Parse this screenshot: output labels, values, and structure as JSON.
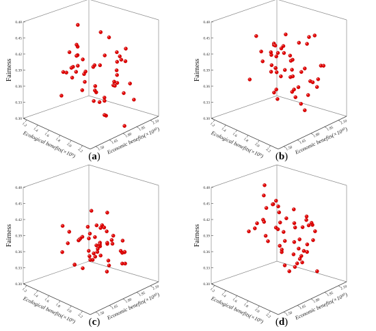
{
  "figure": {
    "panels": [
      {
        "caption_letter": "a",
        "caption_left": "(",
        "caption_right": ")"
      },
      {
        "caption_letter": "b",
        "caption_left": "(",
        "caption_right": ")"
      },
      {
        "caption_letter": "c",
        "caption_left": "(",
        "caption_right": ")"
      },
      {
        "caption_letter": "d",
        "caption_left": "(",
        "caption_right": ")"
      }
    ]
  },
  "chart_data": [
    {
      "type": "scatter",
      "title": "",
      "zlabel": "Fairness",
      "xlabel": "Ecological benefits(×10⁹)",
      "ylabel": "Economic benefits(×10¹⁰)",
      "zticks": [
        "0.30",
        "0.33",
        "0.36",
        "0.39",
        "0.42",
        "0.45",
        "0.48"
      ],
      "zlim": [
        0.3,
        0.48
      ],
      "xticks": [
        "1.2",
        "1.4",
        "1.6",
        "1.8",
        "2.0",
        "2.2"
      ],
      "yticks": [
        "1.50",
        "1.65",
        "1.80",
        "1.95",
        "2.10"
      ],
      "marker_color": "#e00000",
      "points_z": [
        0.31,
        0.32,
        0.33,
        0.33,
        0.34,
        0.34,
        0.35,
        0.35,
        0.36,
        0.36,
        0.36,
        0.37,
        0.37,
        0.37,
        0.38,
        0.38,
        0.38,
        0.39,
        0.39,
        0.39,
        0.4,
        0.4,
        0.4,
        0.41,
        0.41,
        0.41,
        0.42,
        0.42,
        0.42,
        0.43,
        0.43,
        0.43,
        0.44,
        0.44,
        0.45,
        0.45,
        0.46,
        0.46,
        0.37,
        0.38,
        0.4,
        0.41,
        0.42,
        0.39,
        0.36,
        0.35,
        0.43,
        0.44,
        0.38,
        0.4
      ]
    },
    {
      "type": "scatter",
      "title": "",
      "zlabel": "Fairness",
      "xlabel": "Ecological benefits(×10⁹)",
      "ylabel": "Economic benefits(×10¹⁰)",
      "zticks": [
        "0.30",
        "0.33",
        "0.36",
        "0.39",
        "0.42",
        "0.45",
        "0.48"
      ],
      "zlim": [
        0.3,
        0.48
      ],
      "xticks": [
        "1.2",
        "1.4",
        "1.6",
        "1.8",
        "2.0",
        "2.2"
      ],
      "yticks": [
        "1.50",
        "1.65",
        "1.80",
        "1.95",
        "2.10"
      ],
      "marker_color": "#e00000",
      "points_z": [
        0.33,
        0.34,
        0.35,
        0.36,
        0.36,
        0.37,
        0.37,
        0.38,
        0.38,
        0.38,
        0.39,
        0.39,
        0.39,
        0.4,
        0.4,
        0.4,
        0.41,
        0.41,
        0.41,
        0.42,
        0.42,
        0.42,
        0.43,
        0.43,
        0.43,
        0.44,
        0.44,
        0.45,
        0.45,
        0.46,
        0.46,
        0.47,
        0.38,
        0.39,
        0.4,
        0.41,
        0.42,
        0.37,
        0.36,
        0.43,
        0.44,
        0.4,
        0.39,
        0.41,
        0.38,
        0.42,
        0.35,
        0.37,
        0.4,
        0.45
      ]
    },
    {
      "type": "scatter",
      "title": "",
      "zlabel": "Fairness",
      "xlabel": "Ecological benefits(×10⁹)",
      "ylabel": "Economic benefits(×10¹⁰)",
      "zticks": [
        "0.30",
        "0.33",
        "0.36",
        "0.39",
        "0.42",
        "0.45",
        "0.48"
      ],
      "zlim": [
        0.3,
        0.48
      ],
      "xticks": [
        "1.2",
        "1.4",
        "1.6",
        "1.8",
        "2.0",
        "2.2"
      ],
      "yticks": [
        "1.50",
        "1.65",
        "1.80",
        "1.95",
        "2.10"
      ],
      "marker_color": "#e00000",
      "points_z": [
        0.34,
        0.35,
        0.35,
        0.36,
        0.36,
        0.36,
        0.37,
        0.37,
        0.37,
        0.37,
        0.38,
        0.38,
        0.38,
        0.38,
        0.38,
        0.39,
        0.39,
        0.39,
        0.39,
        0.4,
        0.4,
        0.4,
        0.41,
        0.41,
        0.42,
        0.37,
        0.38,
        0.36,
        0.39,
        0.37,
        0.38,
        0.36,
        0.37,
        0.38,
        0.39,
        0.37,
        0.36,
        0.38,
        0.4,
        0.45,
        0.35,
        0.36,
        0.37,
        0.38,
        0.39,
        0.4,
        0.37,
        0.38,
        0.36,
        0.39
      ]
    },
    {
      "type": "scatter",
      "title": "",
      "zlabel": "Fairness",
      "xlabel": "Ecological benefits(×10⁹)",
      "ylabel": "Economic benefits(×10¹⁰)",
      "zticks": [
        "0.30",
        "0.33",
        "0.36",
        "0.39",
        "0.42",
        "0.45",
        "0.48"
      ],
      "zlim": [
        0.3,
        0.48
      ],
      "xticks": [
        "1.2",
        "1.4",
        "1.6",
        "1.8",
        "2.0",
        "2.2"
      ],
      "yticks": [
        "1.50",
        "1.65",
        "1.80",
        "1.95",
        "2.10"
      ],
      "marker_color": "#e00000",
      "points_z": [
        0.32,
        0.33,
        0.34,
        0.35,
        0.36,
        0.36,
        0.37,
        0.37,
        0.38,
        0.38,
        0.39,
        0.39,
        0.39,
        0.4,
        0.4,
        0.4,
        0.41,
        0.41,
        0.41,
        0.42,
        0.42,
        0.42,
        0.43,
        0.43,
        0.43,
        0.44,
        0.44,
        0.45,
        0.45,
        0.46,
        0.46,
        0.47,
        0.38,
        0.39,
        0.4,
        0.41,
        0.42,
        0.37,
        0.36,
        0.43,
        0.44,
        0.4,
        0.39,
        0.41,
        0.38,
        0.42,
        0.35,
        0.37,
        0.4,
        0.44
      ]
    }
  ]
}
